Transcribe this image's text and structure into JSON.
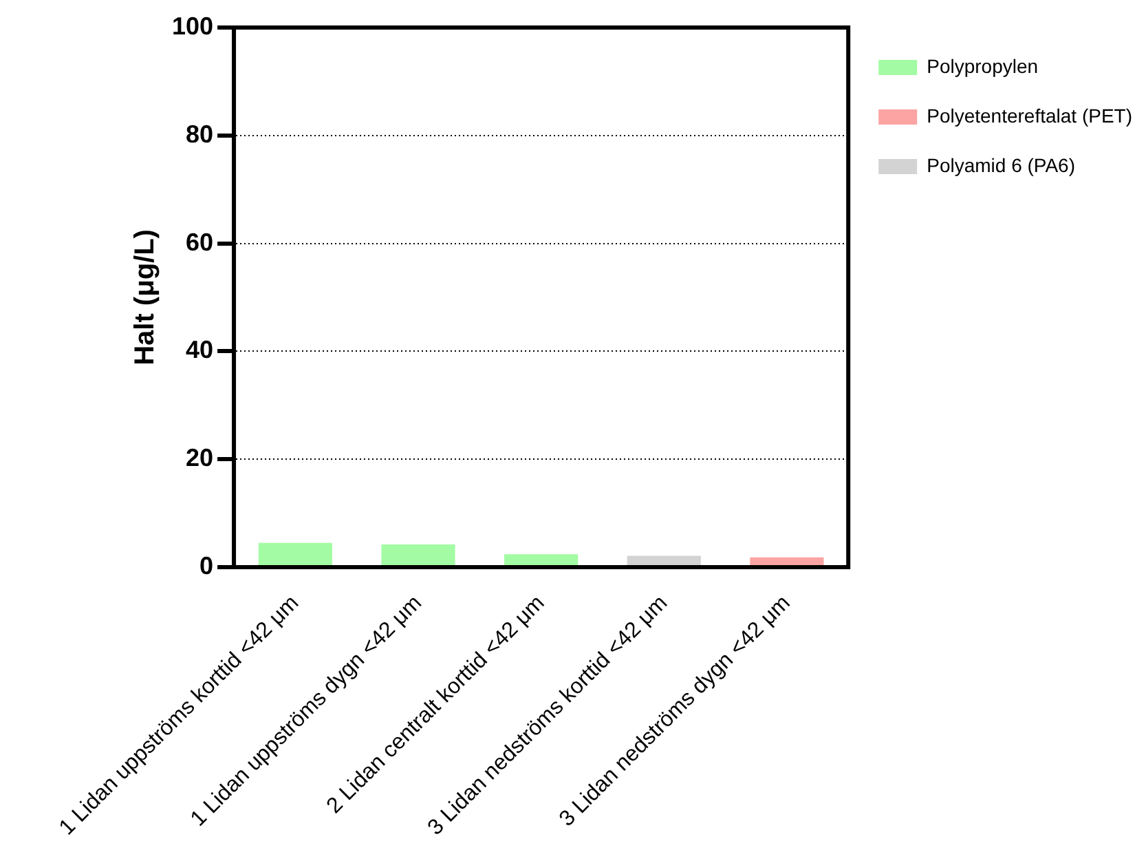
{
  "chart_data": {
    "type": "bar",
    "ylabel": "Halt (μg/L)",
    "categories": [
      "1 Lidan uppströms korttid <42 μm",
      "1 Lidan uppströms dygn <42 μm",
      "2 Lidan centralt korttid <42 μm",
      "3 Lidan nedströms korttid <42 μm",
      "3 Lidan nedströms dygn <42 μm"
    ],
    "series": [
      {
        "name": "Polypropylen",
        "color": "#a3fca3",
        "values": [
          4.5,
          4.2,
          2.4,
          null,
          null
        ]
      },
      {
        "name": "Polyetentereftalat (PET)",
        "color": "#fca3a3",
        "values": [
          null,
          null,
          null,
          null,
          1.8
        ]
      },
      {
        "name": "Polyamid 6 (PA6)",
        "color": "#d3d3d3",
        "values": [
          null,
          null,
          null,
          2.1,
          null
        ]
      }
    ],
    "ylim": [
      0,
      100
    ],
    "yticks": [
      0,
      20,
      40,
      60,
      80,
      100
    ],
    "grid": "y",
    "line_style": "dotted",
    "legend": "top right"
  }
}
